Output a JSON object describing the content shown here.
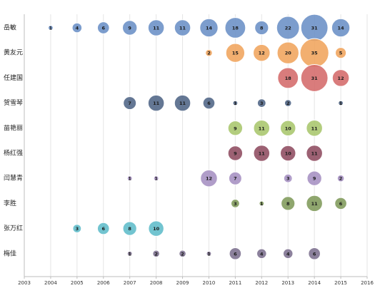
{
  "chart_data": {
    "type": "bubble",
    "title": "",
    "xlabel": "",
    "ylabel": "",
    "x_ticks": [
      "2003",
      "2004",
      "2005",
      "2006",
      "2007",
      "2008",
      "2009",
      "2010",
      "2011",
      "2012",
      "2013",
      "2014",
      "2015",
      "2016"
    ],
    "xlim": [
      2003,
      2016
    ],
    "grid": true,
    "series": [
      {
        "name": "岳敏",
        "color": "#6a8fc6",
        "points": [
          {
            "x": 2004,
            "v": 1
          },
          {
            "x": 2005,
            "v": 4
          },
          {
            "x": 2006,
            "v": 6
          },
          {
            "x": 2007,
            "v": 9
          },
          {
            "x": 2008,
            "v": 11
          },
          {
            "x": 2009,
            "v": 11
          },
          {
            "x": 2010,
            "v": 14
          },
          {
            "x": 2011,
            "v": 18
          },
          {
            "x": 2012,
            "v": 8
          },
          {
            "x": 2013,
            "v": 22
          },
          {
            "x": 2014,
            "v": 31
          },
          {
            "x": 2015,
            "v": 14
          }
        ]
      },
      {
        "name": "黄友元",
        "color": "#f0a45c",
        "points": [
          {
            "x": 2010,
            "v": 2
          },
          {
            "x": 2011,
            "v": 15
          },
          {
            "x": 2012,
            "v": 12
          },
          {
            "x": 2013,
            "v": 20
          },
          {
            "x": 2014,
            "v": 35
          },
          {
            "x": 2015,
            "v": 5
          }
        ]
      },
      {
        "name": "任建国",
        "color": "#d46a6a",
        "points": [
          {
            "x": 2013,
            "v": 18
          },
          {
            "x": 2014,
            "v": 31
          },
          {
            "x": 2015,
            "v": 12
          }
        ]
      },
      {
        "name": "贺雪琴",
        "color": "#4f6485",
        "points": [
          {
            "x": 2007,
            "v": 7
          },
          {
            "x": 2008,
            "v": 11
          },
          {
            "x": 2009,
            "v": 11
          },
          {
            "x": 2010,
            "v": 6
          },
          {
            "x": 2011,
            "v": 1
          },
          {
            "x": 2012,
            "v": 3
          },
          {
            "x": 2013,
            "v": 2
          },
          {
            "x": 2015,
            "v": 1
          }
        ]
      },
      {
        "name": "苗艳丽",
        "color": "#a8c66c",
        "points": [
          {
            "x": 2011,
            "v": 9
          },
          {
            "x": 2012,
            "v": 11
          },
          {
            "x": 2013,
            "v": 10
          },
          {
            "x": 2014,
            "v": 11
          }
        ]
      },
      {
        "name": "杨红强",
        "color": "#8e4b60",
        "points": [
          {
            "x": 2011,
            "v": 9
          },
          {
            "x": 2012,
            "v": 11
          },
          {
            "x": 2013,
            "v": 10
          },
          {
            "x": 2014,
            "v": 11
          }
        ]
      },
      {
        "name": "闫慧青",
        "color": "#a58fc2",
        "points": [
          {
            "x": 2007,
            "v": 1
          },
          {
            "x": 2008,
            "v": 1
          },
          {
            "x": 2010,
            "v": 12
          },
          {
            "x": 2011,
            "v": 7
          },
          {
            "x": 2013,
            "v": 3
          },
          {
            "x": 2014,
            "v": 9
          },
          {
            "x": 2015,
            "v": 2
          }
        ]
      },
      {
        "name": "李胜",
        "color": "#7f9a5a",
        "points": [
          {
            "x": 2011,
            "v": 3
          },
          {
            "x": 2012,
            "v": 1
          },
          {
            "x": 2013,
            "v": 8
          },
          {
            "x": 2014,
            "v": 11
          },
          {
            "x": 2015,
            "v": 6
          }
        ]
      },
      {
        "name": "张万红",
        "color": "#5fbcc9",
        "points": [
          {
            "x": 2005,
            "v": 3
          },
          {
            "x": 2006,
            "v": 6
          },
          {
            "x": 2007,
            "v": 8
          },
          {
            "x": 2008,
            "v": 10
          }
        ]
      },
      {
        "name": "梅佳",
        "color": "#7c6f8e",
        "points": [
          {
            "x": 2007,
            "v": 1
          },
          {
            "x": 2008,
            "v": 2
          },
          {
            "x": 2009,
            "v": 2
          },
          {
            "x": 2010,
            "v": 1
          },
          {
            "x": 2011,
            "v": 6
          },
          {
            "x": 2012,
            "v": 4
          },
          {
            "x": 2013,
            "v": 4
          },
          {
            "x": 2014,
            "v": 6
          }
        ]
      }
    ]
  }
}
